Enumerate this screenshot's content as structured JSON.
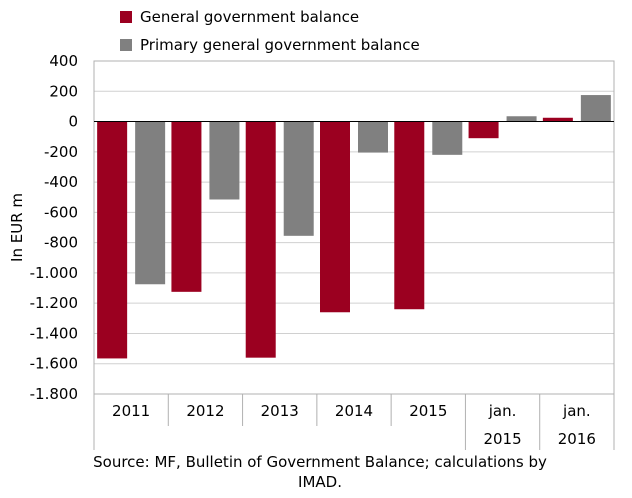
{
  "chart_data": {
    "type": "bar",
    "categories": [
      {
        "label": [
          "2011"
        ]
      },
      {
        "label": [
          "2012"
        ]
      },
      {
        "label": [
          "2013"
        ]
      },
      {
        "label": [
          "2014"
        ]
      },
      {
        "label": [
          "2015"
        ]
      },
      {
        "label": [
          "jan.",
          "2015"
        ]
      },
      {
        "label": [
          "jan.",
          "2016"
        ]
      }
    ],
    "series": [
      {
        "name": "General government balance",
        "color": "#9B0020",
        "values": [
          -1565,
          -1125,
          -1560,
          -1260,
          -1240,
          -110,
          25
        ]
      },
      {
        "name": "Primary general government balance",
        "color": "#808080",
        "values": [
          -1075,
          -515,
          -755,
          -205,
          -220,
          35,
          175
        ]
      }
    ],
    "ylabel": "In EUR m",
    "ylim": [
      -1800,
      400
    ],
    "yticks": [
      400,
      200,
      0,
      -200,
      -400,
      -600,
      -800,
      -1000,
      -1200,
      -1400,
      -1600,
      -1800
    ],
    "ytick_labels": [
      "400",
      "200",
      "0",
      "-200",
      "-400",
      "-600",
      "-800",
      "-1.000",
      "-1.200",
      "-1.400",
      "-1.600",
      "-1.800"
    ],
    "grid": true,
    "legend_position": "top-left"
  },
  "source_note": "Source: MF, Bulletin of Government Balance; calculations by IMAD."
}
